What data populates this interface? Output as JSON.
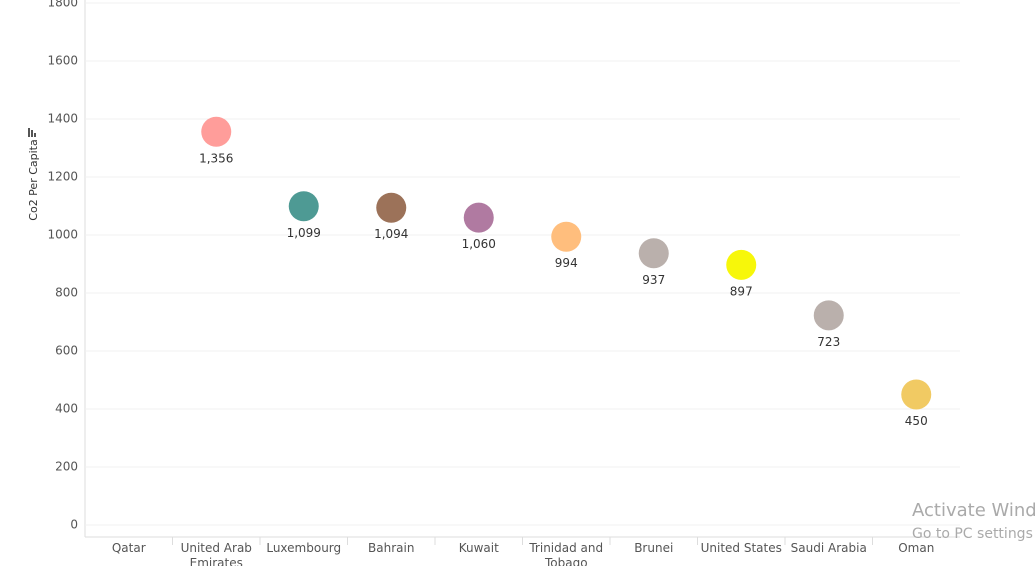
{
  "chart_data": {
    "type": "dot",
    "y_label": "Co2 Per Capita",
    "categories": [
      "Qatar",
      "United Arab Emirates",
      "Luxembourg",
      "Bahrain",
      "Kuwait",
      "Trinidad and Tobago",
      "Brunei",
      "United States",
      "Saudi Arabia",
      "Oman"
    ],
    "values": [
      null,
      1356,
      1099,
      1094,
      1060,
      994,
      937,
      897,
      723,
      450
    ],
    "value_labels": [
      null,
      "1,356",
      "1,099",
      "1,094",
      "1,060",
      "994",
      "937",
      "897",
      "723",
      "450"
    ],
    "colors": [
      null,
      "#ff9d9a",
      "#4e9a94",
      "#9c7259",
      "#b07aa1",
      "#ffbe7d",
      "#bab0ac",
      "#f7f70a",
      "#bab0ac",
      "#f1ca63"
    ],
    "ylim": [
      0,
      1800
    ],
    "yticks": [
      0,
      200,
      400,
      600,
      800,
      1000,
      1200,
      1400,
      1600,
      1800
    ],
    "grid": true
  },
  "watermark": {
    "title": "Activate Windows",
    "subtitle": "Go to PC settings to activate Windows."
  }
}
